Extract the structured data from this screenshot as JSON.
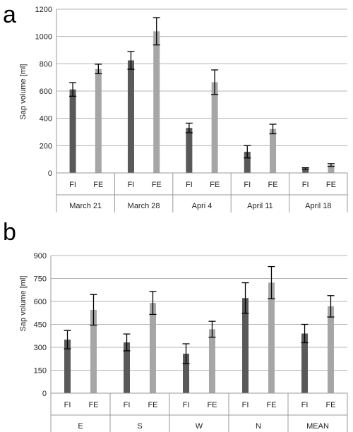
{
  "chart_data": [
    {
      "type": "bar",
      "panel_label": "a",
      "ylabel": "Sap volume [ml]",
      "ylim": [
        0,
        1200
      ],
      "yticks": [
        0,
        200,
        400,
        600,
        800,
        1000,
        1200
      ],
      "grid": true,
      "subcategories": [
        "FI",
        "FE"
      ],
      "categories": [
        "March 21",
        "March 28",
        "Apri 4",
        "April 11",
        "April 18"
      ],
      "series": [
        {
          "name": "FI",
          "color": "#595959",
          "values": [
            612,
            825,
            330,
            155,
            33
          ],
          "errors": [
            50,
            65,
            35,
            45,
            5
          ]
        },
        {
          "name": "FE",
          "color": "#a6a6a6",
          "values": [
            762,
            1038,
            665,
            322,
            58
          ],
          "errors": [
            35,
            100,
            90,
            35,
            10
          ]
        }
      ]
    },
    {
      "type": "bar",
      "panel_label": "b",
      "ylabel": "Sap volume [ml]",
      "ylim": [
        0,
        900
      ],
      "yticks": [
        0,
        150,
        300,
        450,
        600,
        750,
        900
      ],
      "grid": true,
      "subcategories": [
        "FI",
        "FE"
      ],
      "categories": [
        "E",
        "S",
        "W",
        "N",
        "MEAN"
      ],
      "series": [
        {
          "name": "FI",
          "color": "#595959",
          "values": [
            350,
            332,
            258,
            622,
            390
          ],
          "errors": [
            60,
            55,
            65,
            100,
            60
          ]
        },
        {
          "name": "FE",
          "color": "#a6a6a6",
          "values": [
            545,
            590,
            418,
            723,
            568
          ],
          "errors": [
            100,
            75,
            52,
            105,
            70
          ]
        }
      ]
    }
  ]
}
